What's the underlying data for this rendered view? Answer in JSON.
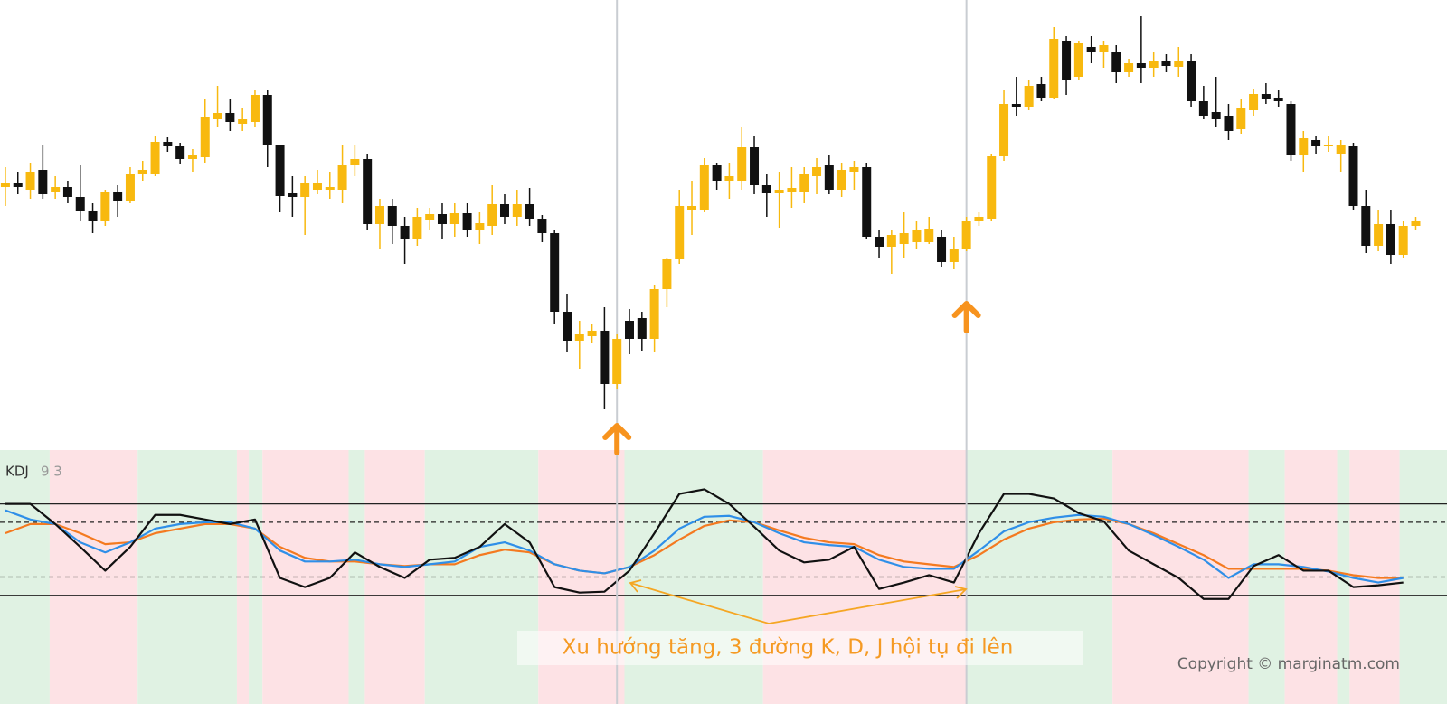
{
  "chart_data": [
    {
      "type": "candlestick",
      "xlim": [
        -0.43,
        115.5
      ],
      "ylim": [
        0,
        500
      ],
      "up_color": "#f8b90f",
      "down_color": "#111111",
      "open": [
        293,
        297,
        290,
        312,
        288,
        293,
        282,
        267,
        255,
        287,
        278,
        308,
        308,
        343,
        338,
        324,
        326,
        368,
        375,
        363,
        365,
        395,
        340,
        286,
        282,
        290,
        290,
        290,
        317,
        324,
        252,
        272,
        250,
        235,
        257,
        263,
        252,
        264,
        245,
        250,
        274,
        260,
        274,
        258,
        242,
        155,
        123,
        128,
        134,
        75,
        145,
        148,
        125,
        180,
        213,
        268,
        268,
        317,
        300,
        300,
        337,
        295,
        286,
        288,
        288,
        305,
        317,
        290,
        310,
        315,
        238,
        227,
        230,
        232,
        232,
        238,
        210,
        225,
        255,
        258,
        327,
        385,
        382,
        407,
        392,
        455,
        415,
        448,
        442,
        442,
        420,
        430,
        425,
        432,
        426,
        433,
        388,
        376,
        372,
        357,
        378,
        396,
        392,
        385,
        328,
        345,
        338,
        330,
        338,
        272,
        228,
        252,
        218,
        250
      ],
      "high": [
        315,
        310,
        320,
        340,
        305,
        300,
        317,
        275,
        290,
        295,
        315,
        322,
        350,
        348,
        342,
        335,
        390,
        405,
        390,
        380,
        400,
        400,
        340,
        305,
        305,
        312,
        310,
        340,
        340,
        330,
        280,
        280,
        260,
        270,
        270,
        275,
        275,
        275,
        265,
        295,
        285,
        290,
        292,
        262,
        245,
        175,
        145,
        142,
        160,
        130,
        158,
        155,
        185,
        215,
        290,
        300,
        325,
        320,
        320,
        360,
        350,
        307,
        310,
        315,
        315,
        325,
        328,
        320,
        322,
        320,
        245,
        245,
        265,
        255,
        260,
        245,
        238,
        260,
        265,
        330,
        400,
        415,
        412,
        415,
        470,
        460,
        455,
        460,
        455,
        450,
        435,
        482,
        442,
        440,
        448,
        440,
        405,
        415,
        385,
        390,
        402,
        408,
        400,
        388,
        355,
        350,
        350,
        345,
        342,
        290,
        268,
        268,
        255,
        260
      ],
      "low": [
        272,
        285,
        280,
        280,
        280,
        275,
        255,
        242,
        250,
        260,
        275,
        300,
        305,
        332,
        318,
        310,
        320,
        360,
        355,
        355,
        360,
        315,
        265,
        260,
        240,
        285,
        280,
        275,
        305,
        245,
        225,
        230,
        208,
        228,
        245,
        235,
        238,
        238,
        230,
        240,
        252,
        250,
        250,
        232,
        142,
        110,
        92,
        120,
        47,
        70,
        108,
        112,
        110,
        160,
        208,
        240,
        265,
        290,
        280,
        290,
        285,
        260,
        248,
        270,
        275,
        285,
        285,
        282,
        290,
        235,
        215,
        197,
        215,
        225,
        230,
        205,
        202,
        222,
        250,
        255,
        322,
        372,
        378,
        388,
        390,
        395,
        412,
        430,
        425,
        408,
        415,
        408,
        415,
        420,
        415,
        382,
        368,
        360,
        345,
        352,
        372,
        385,
        382,
        322,
        310,
        330,
        332,
        310,
        268,
        220,
        222,
        208,
        215,
        245
      ],
      "close": [
        297,
        293,
        310,
        285,
        293,
        282,
        267,
        255,
        287,
        278,
        308,
        312,
        343,
        338,
        324,
        328,
        370,
        375,
        365,
        368,
        395,
        340,
        283,
        282,
        297,
        297,
        293,
        317,
        324,
        252,
        272,
        250,
        235,
        260,
        263,
        252,
        264,
        245,
        253,
        274,
        260,
        274,
        258,
        242,
        155,
        123,
        130,
        134,
        75,
        125,
        125,
        125,
        180,
        213,
        272,
        272,
        317,
        300,
        305,
        337,
        295,
        286,
        290,
        292,
        307,
        315,
        290,
        312,
        315,
        238,
        227,
        240,
        242,
        245,
        247,
        210,
        225,
        255,
        260,
        327,
        385,
        382,
        405,
        392,
        457,
        412,
        452,
        443,
        450,
        420,
        430,
        425,
        432,
        427,
        432,
        388,
        372,
        368,
        355,
        380,
        396,
        390,
        388,
        328,
        347,
        338,
        340,
        340,
        272,
        228,
        252,
        218,
        250,
        255
      ],
      "vlines": [
        49,
        77
      ],
      "signals": [
        {
          "x": 49,
          "y": 25
        },
        {
          "x": 77,
          "y": 160
        }
      ],
      "signal_color": "#f7931e"
    },
    {
      "type": "line",
      "title": "KDJ",
      "subtitle": "9 3",
      "xlim": [
        -0.43,
        115.5
      ],
      "ylim": [
        -119,
        159
      ],
      "levels": [
        {
          "value": 100,
          "style": "solid"
        },
        {
          "value": 80,
          "style": "dashed"
        },
        {
          "value": 20,
          "style": "dashed"
        },
        {
          "value": 0,
          "style": "solid"
        }
      ],
      "zones": [
        {
          "from": -0.43,
          "to": 3.55,
          "color": "#e0f2e3"
        },
        {
          "from": 3.55,
          "to": 10.6,
          "color": "#fde2e5"
        },
        {
          "from": 10.6,
          "to": 18.55,
          "color": "#e0f2e3"
        },
        {
          "from": 18.55,
          "to": 19.5,
          "color": "#fde2e5"
        },
        {
          "from": 19.5,
          "to": 20.6,
          "color": "#e0f2e3"
        },
        {
          "from": 20.6,
          "to": 27.5,
          "color": "#fde2e5"
        },
        {
          "from": 27.5,
          "to": 28.8,
          "color": "#e0f2e3"
        },
        {
          "from": 28.8,
          "to": 33.6,
          "color": "#fde2e5"
        },
        {
          "from": 33.6,
          "to": 42.7,
          "color": "#e0f2e3"
        },
        {
          "from": 42.7,
          "to": 49.6,
          "color": "#fde2e5"
        },
        {
          "from": 49.6,
          "to": 60.7,
          "color": "#e0f2e3"
        },
        {
          "from": 60.7,
          "to": 77,
          "color": "#fde2e5"
        },
        {
          "from": 77,
          "to": 88.7,
          "color": "#e0f2e3"
        },
        {
          "from": 88.7,
          "to": 99.6,
          "color": "#fde2e5"
        },
        {
          "from": 99.6,
          "to": 102.5,
          "color": "#e0f2e3"
        },
        {
          "from": 102.5,
          "to": 106.7,
          "color": "#fde2e5"
        },
        {
          "from": 106.7,
          "to": 107.7,
          "color": "#e0f2e3"
        },
        {
          "from": 107.7,
          "to": 111.7,
          "color": "#fde2e5"
        },
        {
          "from": 111.7,
          "to": 115.5,
          "color": "#e0f2e3"
        }
      ],
      "x": [
        0,
        2,
        4,
        6,
        8,
        10,
        12,
        14,
        16,
        18,
        20,
        22,
        24,
        26,
        28,
        30,
        32,
        34,
        36,
        38,
        40,
        42,
        44,
        46,
        48,
        50,
        52,
        54,
        56,
        58,
        60,
        62,
        64,
        66,
        68,
        70,
        72,
        74,
        76,
        78,
        80,
        82,
        84,
        86,
        88,
        90,
        92,
        94,
        96,
        98,
        100,
        102,
        104,
        106,
        108,
        110,
        112
      ],
      "series": [
        {
          "color": "#f47a20",
          "values": [
            68,
            78,
            78,
            68,
            56,
            58,
            68,
            73,
            78,
            78,
            73,
            53,
            41,
            37,
            37,
            34,
            32,
            34,
            34,
            44,
            50,
            47,
            34,
            27,
            24,
            31,
            44,
            61,
            76,
            82,
            80,
            71,
            63,
            58,
            56,
            44,
            37,
            34,
            31,
            44,
            61,
            73,
            80,
            83,
            84,
            78,
            68,
            56,
            44,
            29,
            29,
            29,
            29,
            27,
            22,
            19,
            19
          ]
        },
        {
          "color": "#2f8fe8",
          "values": [
            93,
            83,
            78,
            58,
            47,
            58,
            73,
            78,
            80,
            80,
            73,
            49,
            37,
            37,
            39,
            34,
            31,
            34,
            37,
            53,
            58,
            49,
            34,
            27,
            24,
            31,
            49,
            73,
            86,
            87,
            80,
            68,
            58,
            55,
            53,
            39,
            31,
            29,
            29,
            49,
            70,
            80,
            85,
            88,
            86,
            78,
            66,
            53,
            39,
            19,
            34,
            34,
            31,
            26,
            19,
            14,
            19
          ]
        },
        {
          "color": "#111111",
          "values": [
            100,
            100,
            78,
            53,
            27,
            53,
            88,
            88,
            83,
            78,
            83,
            19,
            9,
            19,
            47,
            31,
            19,
            39,
            41,
            53,
            78,
            58,
            9,
            3,
            4,
            27,
            68,
            111,
            116,
            100,
            75,
            49,
            36,
            39,
            53,
            7,
            14,
            22,
            14,
            68,
            111,
            111,
            106,
            90,
            81,
            49,
            34,
            19,
            -4,
            -4,
            32,
            44,
            27,
            27,
            9,
            11,
            14
          ]
        }
      ],
      "annotation": "Xu hướng tăng, 3 đường K, D, J hội tụ đi lên"
    }
  ],
  "watermark": "Copyright © marginatm.com"
}
